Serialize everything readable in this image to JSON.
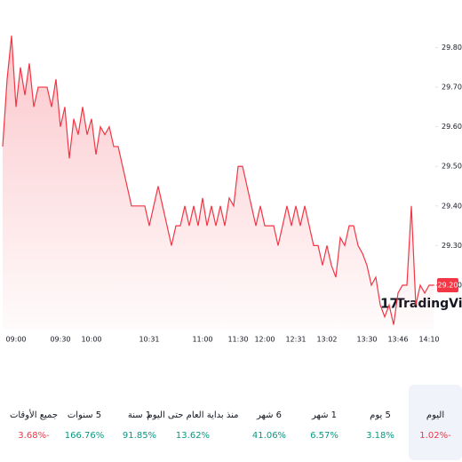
{
  "chart_data": {
    "type": "area",
    "categories": [
      null,
      null,
      null,
      "09:00",
      null,
      null,
      null,
      null,
      null,
      null,
      null,
      null,
      null,
      "09:30",
      null,
      null,
      null,
      null,
      null,
      null,
      "10:00",
      null,
      null,
      null,
      null,
      null,
      null,
      null,
      null,
      null,
      null,
      null,
      null,
      "10:31",
      null,
      null,
      null,
      null,
      null,
      null,
      null,
      null,
      null,
      null,
      null,
      "11:00",
      null,
      null,
      null,
      null,
      null,
      null,
      null,
      "11:30",
      null,
      null,
      null,
      null,
      null,
      "12:00",
      null,
      null,
      null,
      null,
      null,
      null,
      "12:31",
      null,
      null,
      null,
      null,
      null,
      null,
      "13:02",
      null,
      null,
      null,
      null,
      null,
      null,
      null,
      null,
      "13:30",
      null,
      null,
      null,
      null,
      null,
      null,
      "13:46",
      null,
      null,
      null,
      null,
      null,
      null,
      "14:10",
      null
    ],
    "values": [
      29.55,
      29.72,
      29.83,
      29.65,
      29.75,
      29.68,
      29.76,
      29.65,
      29.7,
      29.7,
      29.7,
      29.65,
      29.72,
      29.6,
      29.65,
      29.52,
      29.62,
      29.58,
      29.65,
      29.58,
      29.62,
      29.53,
      29.6,
      29.58,
      29.6,
      29.55,
      29.55,
      29.5,
      29.45,
      29.4,
      29.4,
      29.4,
      29.4,
      29.35,
      29.4,
      29.45,
      29.4,
      29.35,
      29.3,
      29.35,
      29.35,
      29.4,
      29.35,
      29.4,
      29.35,
      29.42,
      29.35,
      29.4,
      29.35,
      29.4,
      29.35,
      29.42,
      29.4,
      29.5,
      29.5,
      29.45,
      29.4,
      29.35,
      29.4,
      29.35,
      29.35,
      29.35,
      29.3,
      29.35,
      29.4,
      29.35,
      29.4,
      29.35,
      29.4,
      29.35,
      29.3,
      29.3,
      29.25,
      29.3,
      29.25,
      29.22,
      29.32,
      29.3,
      29.35,
      29.35,
      29.3,
      29.28,
      29.25,
      29.2,
      29.22,
      29.15,
      29.12,
      29.15,
      29.1,
      29.18,
      29.2,
      29.2,
      29.4,
      29.15,
      29.2,
      29.18,
      29.2,
      29.2
    ],
    "color": "#f23645",
    "ylim": [
      29.09,
      29.92
    ],
    "yticks": [
      {
        "value": 29.2,
        "label": "29.20"
      },
      {
        "value": 29.3,
        "label": "29.30"
      },
      {
        "value": 29.4,
        "label": "29.40"
      },
      {
        "value": 29.5,
        "label": "29.50"
      },
      {
        "value": 29.6,
        "label": "29.60"
      },
      {
        "value": 29.7,
        "label": "29.70"
      },
      {
        "value": 29.8,
        "label": "29.80"
      }
    ],
    "last_price_label": "29.20",
    "watermark": "TradingView"
  },
  "periods": [
    {
      "label": "اليوم",
      "change": "-1.02%",
      "selected": true,
      "negative": true
    },
    {
      "label": "5 يوم",
      "change": "3.18%",
      "selected": false,
      "negative": false
    },
    {
      "label": "1 شهر",
      "change": "6.57%",
      "selected": false,
      "negative": false
    },
    {
      "label": "6 شهر",
      "change": "41.06%",
      "selected": false,
      "negative": false
    },
    {
      "label": "منذ بداية العام حتى اليوم",
      "change": "13.62%",
      "selected": false,
      "negative": false
    },
    {
      "label": "1 سنة",
      "change": "91.85%",
      "selected": false,
      "negative": false
    },
    {
      "label": "5 سنوات",
      "change": "166.76%",
      "selected": false,
      "negative": false
    },
    {
      "label": "جميع الأوقات",
      "change": "-3.68%",
      "selected": false,
      "negative": true
    }
  ]
}
